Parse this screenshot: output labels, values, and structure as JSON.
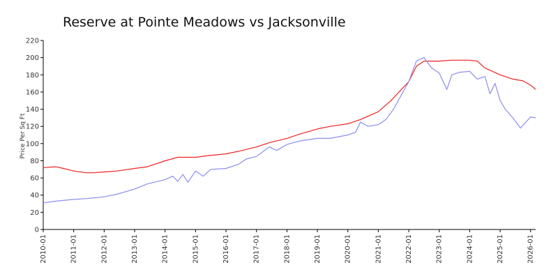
{
  "chart_data": {
    "type": "line",
    "title": "Reserve at Pointe Meadows vs Jacksonville",
    "xlabel": "",
    "ylabel": "Price Per Sq Ft",
    "ylim": [
      0,
      220
    ],
    "yticks": [
      0,
      20,
      40,
      60,
      80,
      100,
      120,
      140,
      160,
      180,
      200,
      220
    ],
    "xticks": [
      "2010-01",
      "2011-01",
      "2012-01",
      "2013-01",
      "2014-01",
      "2015-01",
      "2016-01",
      "2017-01",
      "2018-01",
      "2019-01",
      "2020-01",
      "2021-01",
      "2022-01",
      "2023-01",
      "2024-01",
      "2025-01",
      "2026-01"
    ],
    "xlim": [
      "2010-01",
      "2026-03"
    ],
    "grid": false,
    "legend": "none",
    "series": [
      {
        "color": "#ee2222",
        "points": [
          [
            "2010-01",
            72
          ],
          [
            "2010-06",
            73
          ],
          [
            "2010-09",
            71
          ],
          [
            "2011-01",
            68
          ],
          [
            "2011-06",
            66
          ],
          [
            "2011-09",
            66
          ],
          [
            "2012-01",
            67
          ],
          [
            "2012-06",
            68
          ],
          [
            "2013-01",
            71
          ],
          [
            "2013-06",
            73
          ],
          [
            "2014-01",
            80
          ],
          [
            "2014-06",
            84
          ],
          [
            "2014-09",
            84
          ],
          [
            "2015-01",
            84
          ],
          [
            "2015-06",
            86
          ],
          [
            "2016-01",
            88
          ],
          [
            "2016-06",
            91
          ],
          [
            "2017-01",
            96
          ],
          [
            "2017-06",
            101
          ],
          [
            "2018-01",
            106
          ],
          [
            "2018-06",
            111
          ],
          [
            "2019-01",
            117
          ],
          [
            "2019-06",
            120
          ],
          [
            "2020-01",
            123
          ],
          [
            "2020-06",
            128
          ],
          [
            "2021-01",
            137
          ],
          [
            "2021-06",
            150
          ],
          [
            "2022-01",
            172
          ],
          [
            "2022-04",
            190
          ],
          [
            "2022-07",
            196
          ],
          [
            "2023-01",
            196
          ],
          [
            "2023-06",
            197
          ],
          [
            "2024-01",
            197
          ],
          [
            "2024-04",
            196
          ],
          [
            "2024-07",
            188
          ],
          [
            "2025-01",
            180
          ],
          [
            "2025-06",
            175
          ],
          [
            "2025-10",
            173
          ],
          [
            "2026-01",
            168
          ],
          [
            "2026-03",
            163
          ]
        ]
      },
      {
        "color": "#8c8cf0",
        "points": [
          [
            "2010-01",
            31
          ],
          [
            "2010-06",
            33
          ],
          [
            "2011-01",
            35
          ],
          [
            "2011-06",
            36
          ],
          [
            "2012-01",
            38
          ],
          [
            "2012-06",
            41
          ],
          [
            "2013-01",
            47
          ],
          [
            "2013-06",
            53
          ],
          [
            "2014-01",
            58
          ],
          [
            "2014-04",
            62
          ],
          [
            "2014-06",
            56
          ],
          [
            "2014-08",
            64
          ],
          [
            "2014-10",
            55
          ],
          [
            "2015-01",
            68
          ],
          [
            "2015-04",
            62
          ],
          [
            "2015-07",
            70
          ],
          [
            "2016-01",
            71
          ],
          [
            "2016-06",
            76
          ],
          [
            "2016-09",
            82
          ],
          [
            "2017-01",
            85
          ],
          [
            "2017-06",
            96
          ],
          [
            "2017-09",
            92
          ],
          [
            "2018-01",
            99
          ],
          [
            "2018-06",
            103
          ],
          [
            "2019-01",
            106
          ],
          [
            "2019-06",
            106
          ],
          [
            "2020-01",
            110
          ],
          [
            "2020-04",
            113
          ],
          [
            "2020-06",
            125
          ],
          [
            "2020-09",
            120
          ],
          [
            "2021-01",
            122
          ],
          [
            "2021-04",
            128
          ],
          [
            "2021-07",
            140
          ],
          [
            "2021-10",
            156
          ],
          [
            "2022-01",
            172
          ],
          [
            "2022-04",
            196
          ],
          [
            "2022-07",
            200
          ],
          [
            "2022-10",
            188
          ],
          [
            "2023-01",
            182
          ],
          [
            "2023-04",
            163
          ],
          [
            "2023-06",
            180
          ],
          [
            "2023-09",
            183
          ],
          [
            "2024-01",
            184
          ],
          [
            "2024-04",
            175
          ],
          [
            "2024-07",
            178
          ],
          [
            "2024-09",
            158
          ],
          [
            "2024-11",
            170
          ],
          [
            "2025-01",
            150
          ],
          [
            "2025-03",
            140
          ],
          [
            "2025-06",
            130
          ],
          [
            "2025-09",
            118
          ],
          [
            "2026-01",
            131
          ],
          [
            "2026-03",
            130
          ]
        ]
      }
    ]
  }
}
